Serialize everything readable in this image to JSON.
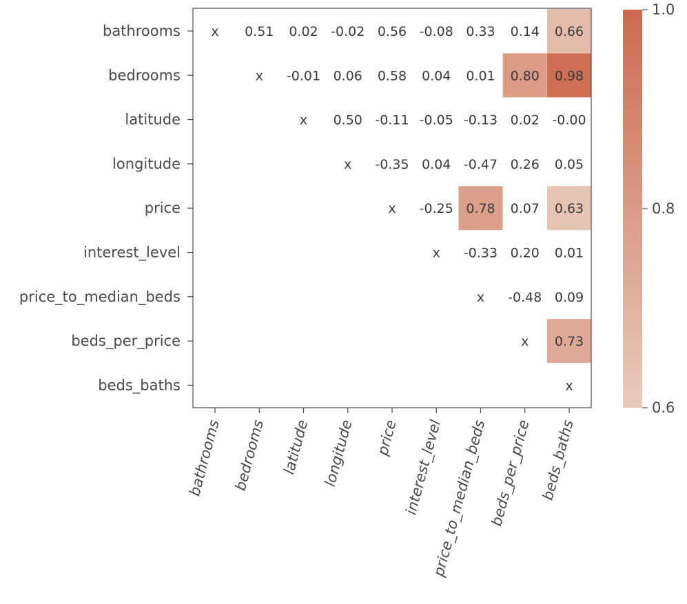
{
  "chart_data": {
    "type": "heatmap",
    "title": "",
    "labels": [
      "bathrooms",
      "bedrooms",
      "latitude",
      "longitude",
      "price",
      "interest_level",
      "price_to_median_beds",
      "beds_per_price",
      "beds_baths"
    ],
    "matrix": [
      [
        "x",
        "0.51",
        "0.02",
        "-0.02",
        "0.56",
        "-0.08",
        "0.33",
        "0.14",
        "0.66"
      ],
      [
        "",
        "x",
        "-0.01",
        "0.06",
        "0.58",
        "0.04",
        "0.01",
        "0.80",
        "0.98"
      ],
      [
        "",
        "",
        "x",
        "0.50",
        "-0.11",
        "-0.05",
        "-0.13",
        "0.02",
        "-0.00"
      ],
      [
        "",
        "",
        "",
        "x",
        "-0.35",
        "0.04",
        "-0.47",
        "0.26",
        "0.05"
      ],
      [
        "",
        "",
        "",
        "",
        "x",
        "-0.25",
        "0.78",
        "0.07",
        "0.63"
      ],
      [
        "",
        "",
        "",
        "",
        "",
        "x",
        "-0.33",
        "0.20",
        "0.01"
      ],
      [
        "",
        "",
        "",
        "",
        "",
        "",
        "x",
        "-0.48",
        "0.09"
      ],
      [
        "",
        "",
        "",
        "",
        "",
        "",
        "",
        "x",
        "0.73"
      ],
      [
        "",
        "",
        "",
        "",
        "",
        "",
        "",
        "",
        "x"
      ]
    ],
    "colorbar": {
      "range": [
        0.6,
        1.0
      ],
      "ticks": [
        0.6,
        0.8,
        1.0
      ],
      "tick_labels": [
        "0.6",
        "0.8",
        "1.0"
      ],
      "color_low": "#e8cbbb",
      "color_high": "#cd6a4f"
    },
    "mask_threshold": 0.6
  }
}
